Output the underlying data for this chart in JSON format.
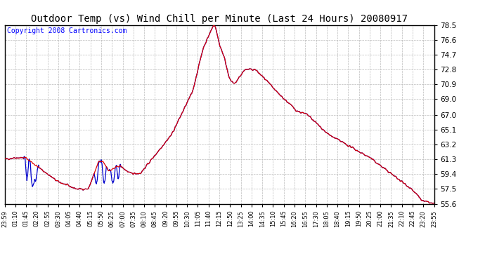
{
  "title": "Outdoor Temp (vs) Wind Chill per Minute (Last 24 Hours) 20080917",
  "copyright": "Copyright 2008 Cartronics.com",
  "ylim": [
    55.6,
    78.5
  ],
  "yticks": [
    55.6,
    57.5,
    59.4,
    61.3,
    63.2,
    65.1,
    67.0,
    69.0,
    70.9,
    72.8,
    74.7,
    76.6,
    78.5
  ],
  "xtick_labels": [
    "23:59",
    "01:10",
    "01:45",
    "02:20",
    "02:55",
    "03:30",
    "04:05",
    "04:40",
    "05:15",
    "05:50",
    "06:25",
    "07:00",
    "07:35",
    "08:10",
    "08:45",
    "09:20",
    "09:55",
    "10:30",
    "11:05",
    "11:40",
    "12:15",
    "12:50",
    "13:25",
    "14:00",
    "14:35",
    "15:10",
    "15:45",
    "16:20",
    "16:55",
    "17:30",
    "18:05",
    "18:40",
    "19:15",
    "19:50",
    "20:25",
    "21:00",
    "21:35",
    "22:10",
    "22:45",
    "23:20",
    "23:55"
  ],
  "bg_color": "#ffffff",
  "plot_bg_color": "#ffffff",
  "grid_color": "#bbbbbb",
  "title_color": "#000000",
  "red_line_color": "#dd0000",
  "blue_line_color": "#0000cc",
  "title_fontsize": 10,
  "copyright_fontsize": 7
}
